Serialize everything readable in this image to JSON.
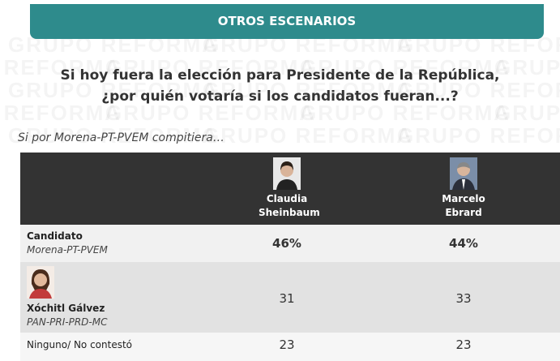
{
  "watermark": "GRUPO REFORMA",
  "header": {
    "title": "OTROS ESCENARIOS"
  },
  "question": "Si hoy fuera la elección para Presidente de la República, ¿por quién votaría si los candidatos fueran...?",
  "subtitle": "Si por Morena-PT-PVEM compitiera…",
  "table": {
    "columns": [
      "Claudia Sheinbaum",
      "Marcelo Ebrard"
    ],
    "rows": [
      {
        "label": "Candidato",
        "sublabel": "Morena-PT-PVEM",
        "values": [
          "46%",
          "44%"
        ]
      },
      {
        "label": "Xóchitl Gálvez",
        "sublabel": "PAN-PRI-PRD-MC",
        "values": [
          "31",
          "33"
        ]
      },
      {
        "label": "Ninguno/ No contestó",
        "values": [
          "23",
          "23"
        ]
      }
    ]
  }
}
